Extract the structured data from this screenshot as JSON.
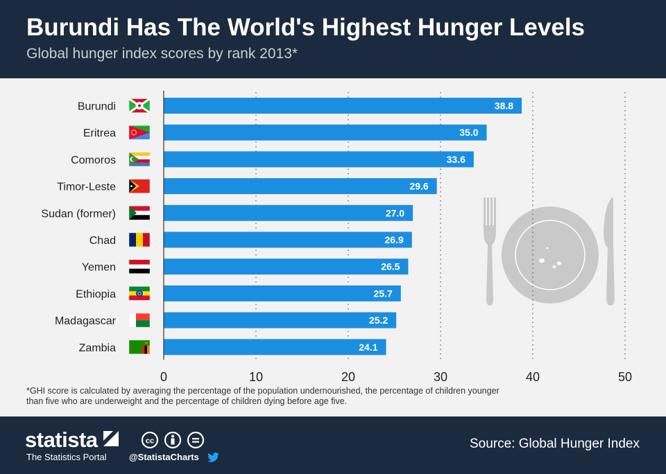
{
  "header": {
    "title": "Burundi Has The World's Highest Hunger Levels",
    "subtitle": "Global hunger index scores by rank 2013*"
  },
  "chart_data": {
    "type": "bar",
    "orientation": "horizontal",
    "categories": [
      "Burundi",
      "Eritrea",
      "Comoros",
      "Timor-Leste",
      "Sudan (former)",
      "Chad",
      "Yemen",
      "Ethiopia",
      "Madagascar",
      "Zambia"
    ],
    "values": [
      38.8,
      35.0,
      33.6,
      29.6,
      27.0,
      26.9,
      26.5,
      25.7,
      25.2,
      24.1
    ],
    "value_labels": [
      "38.8",
      "35.0",
      "33.6",
      "29.6",
      "27.0",
      "26.9",
      "26.5",
      "25.7",
      "25.2",
      "24.1"
    ],
    "xticks": [
      "0",
      "10",
      "20",
      "30",
      "40",
      "50"
    ],
    "xlim": [
      0,
      50
    ],
    "grid": "vertical dotted",
    "bar_color": "#1c8ee0",
    "flags": [
      "burundi-flag",
      "eritrea-flag",
      "comoros-flag",
      "timor-leste-flag",
      "sudan-flag",
      "chad-flag",
      "yemen-flag",
      "ethiopia-flag",
      "madagascar-flag",
      "zambia-flag"
    ],
    "decoration": "fork-plate-knife-icon"
  },
  "footnote": "*GHI score is calculated by averaging the percentage of the population undernourished, the percentage of children younger than five who are underweight and the percentage of children dying before age five.",
  "footer": {
    "brand": "statista",
    "tagline": "The Statistics Portal",
    "handle": "@StatistaCharts",
    "source": "Source: Global Hunger Index"
  },
  "colors": {
    "header_bg": "#1b2a3e",
    "chart_bg": "#f2f2f2",
    "bar": "#1c8ee0",
    "decoration": "#c9c9c9"
  }
}
